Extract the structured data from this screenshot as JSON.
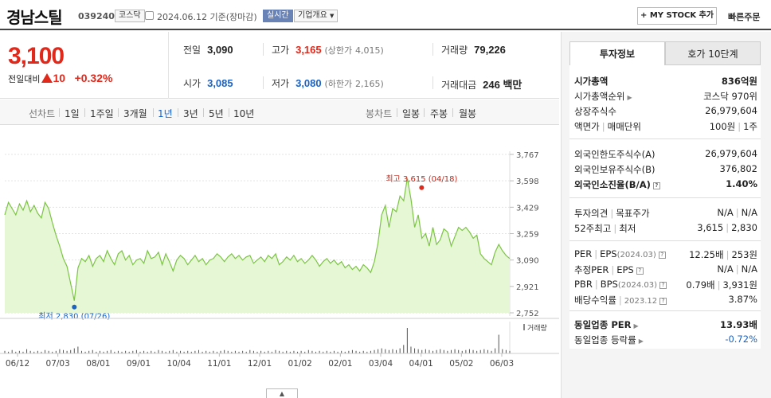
{
  "header": {
    "name": "경남스틸",
    "code": "039240",
    "market": "코스닥",
    "date": "2024.06.12 기준(장마감)",
    "realtime_label": "실시간",
    "company_label": "기업개요",
    "mystock_label": "+ MY STOCK 추가",
    "fast_order_label": "빠른주문"
  },
  "price": {
    "current": "3,100",
    "change_label": "전일대비",
    "change_value": "10",
    "change_pct": "+0.32%"
  },
  "price_info": {
    "prev_label": "전일",
    "prev": "3,090",
    "high_label": "고가",
    "high": "3,165",
    "upper_label": "(상한가",
    "upper": "4,015)",
    "volume_label": "거래량",
    "volume": "79,226",
    "open_label": "시가",
    "open": "3,085",
    "low_label": "저가",
    "low": "3,080",
    "lower_label": "(하한가",
    "lower": "2,165)",
    "amount_label": "거래대금",
    "amount": "246 백만"
  },
  "period_tabs": {
    "line_label": "선차트",
    "items": [
      "1일",
      "1주일",
      "3개월",
      "1년",
      "3년",
      "5년",
      "10년"
    ],
    "active": "1년",
    "candle_label": "봉차트",
    "candle_items": [
      "일봉",
      "주봉",
      "월봉"
    ]
  },
  "chart_data": {
    "type": "area",
    "y_ticks": [
      "3,767",
      "3,598",
      "3,429",
      "3,259",
      "3,090",
      "2,921",
      "2,752"
    ],
    "ylim": [
      2752,
      3767
    ],
    "x_ticks": [
      "06/12",
      "07/03",
      "08/01",
      "09/01",
      "10/04",
      "11/01",
      "12/01",
      "01/02",
      "02/01",
      "03/04",
      "04/01",
      "05/02",
      "06/03"
    ],
    "high_label": "최고 3,615 (04/18)",
    "low_label": "최저 2,830 (07/26)",
    "volume_label": "거래량",
    "values": [
      3380,
      3460,
      3420,
      3380,
      3450,
      3410,
      3470,
      3400,
      3440,
      3390,
      3360,
      3460,
      3420,
      3330,
      3250,
      3180,
      3100,
      3050,
      2940,
      2830,
      3040,
      3100,
      3080,
      3120,
      3050,
      3100,
      3120,
      3080,
      3150,
      3100,
      3060,
      3130,
      3150,
      3090,
      3120,
      3060,
      3090,
      3100,
      3070,
      3150,
      3100,
      3110,
      3140,
      3060,
      3130,
      3080,
      3020,
      3090,
      3120,
      3100,
      3060,
      3090,
      3120,
      3080,
      3100,
      3060,
      3090,
      3100,
      3130,
      3110,
      3080,
      3110,
      3130,
      3100,
      3120,
      3090,
      3110,
      3120,
      3070,
      3090,
      3110,
      3080,
      3120,
      3100,
      3130,
      3060,
      3080,
      3110,
      3090,
      3120,
      3080,
      3100,
      3070,
      3090,
      3120,
      3090,
      3050,
      3080,
      3100,
      3070,
      3090,
      3060,
      3080,
      3040,
      3060,
      3030,
      3050,
      3020,
      3060,
      3040,
      3010,
      3080,
      3200,
      3380,
      3440,
      3300,
      3420,
      3400,
      3500,
      3470,
      3615,
      3480,
      3300,
      3380,
      3230,
      3260,
      3180,
      3300,
      3190,
      3220,
      3290,
      3270,
      3180,
      3240,
      3300,
      3280,
      3300,
      3270,
      3230,
      3250,
      3130,
      3100,
      3080,
      3060,
      3140,
      3190,
      3150,
      3120,
      3100
    ],
    "volumes": [
      3,
      2,
      4,
      2,
      3,
      2,
      5,
      3,
      2,
      3,
      2,
      4,
      3,
      2,
      3,
      5,
      4,
      3,
      4,
      6,
      8,
      3,
      2,
      3,
      4,
      2,
      3,
      2,
      3,
      4,
      2,
      3,
      2,
      3,
      2,
      3,
      4,
      2,
      3,
      2,
      3,
      2,
      4,
      3,
      2,
      3,
      4,
      2,
      3,
      2,
      3,
      2,
      3,
      4,
      2,
      3,
      2,
      3,
      2,
      3,
      4,
      3,
      2,
      3,
      2,
      3,
      2,
      4,
      3,
      2,
      3,
      2,
      3,
      2,
      4,
      3,
      2,
      3,
      2,
      3,
      2,
      3,
      2,
      4,
      3,
      2,
      3,
      2,
      3,
      2,
      3,
      2,
      3,
      2,
      3,
      4,
      3,
      2,
      3,
      2,
      3,
      4,
      5,
      6,
      5,
      4,
      5,
      4,
      6,
      10,
      30,
      8,
      6,
      5,
      4,
      5,
      4,
      3,
      4,
      5,
      4,
      3,
      4,
      5,
      4,
      3,
      4,
      5,
      4,
      3,
      4,
      5,
      4,
      3,
      6,
      22,
      5,
      4,
      3
    ]
  },
  "right_panel": {
    "tab_active": "투자정보",
    "tab_inactive": "호가 10단계",
    "rows1": [
      {
        "k": "시가총액",
        "v": "836억원"
      },
      {
        "k": "시가총액순위",
        "v": "코스닥 970위"
      },
      {
        "k": "상장주식수",
        "v": "26,979,604"
      },
      {
        "k": "액면가",
        "k2": "매매단위",
        "v": "100원",
        "v2": "1주"
      }
    ],
    "rows2": [
      {
        "k": "외국인한도주식수(A)",
        "v": "26,979,604"
      },
      {
        "k": "외국인보유주식수(B)",
        "v": "376,802"
      },
      {
        "k": "외국인소진율(B/A)",
        "v": "1.40%"
      }
    ],
    "rows3": [
      {
        "k": "투자의견",
        "k2": "목표주가",
        "v": "N/A",
        "v2": "N/A"
      },
      {
        "k": "52주최고",
        "k2": "최저",
        "v": "3,615",
        "v2": "2,830"
      }
    ],
    "rows4": [
      {
        "k": "PER",
        "k2": "EPS",
        "k3": "(2024.03)",
        "v": "12.25배",
        "v2": "253원"
      },
      {
        "k": "추정PER",
        "k2": "EPS",
        "v": "N/A",
        "v2": "N/A"
      },
      {
        "k": "PBR",
        "k2": "BPS",
        "k3": "(2024.03)",
        "v": "0.79배",
        "v2": "3,931원"
      },
      {
        "k": "배당수익률",
        "k3": "2023.12",
        "v": "3.87%"
      }
    ],
    "rows5": [
      {
        "k": "동일업종 PER",
        "v": "13.93배"
      },
      {
        "k": "동일업종 등락률",
        "v": "-0.72%"
      }
    ]
  }
}
